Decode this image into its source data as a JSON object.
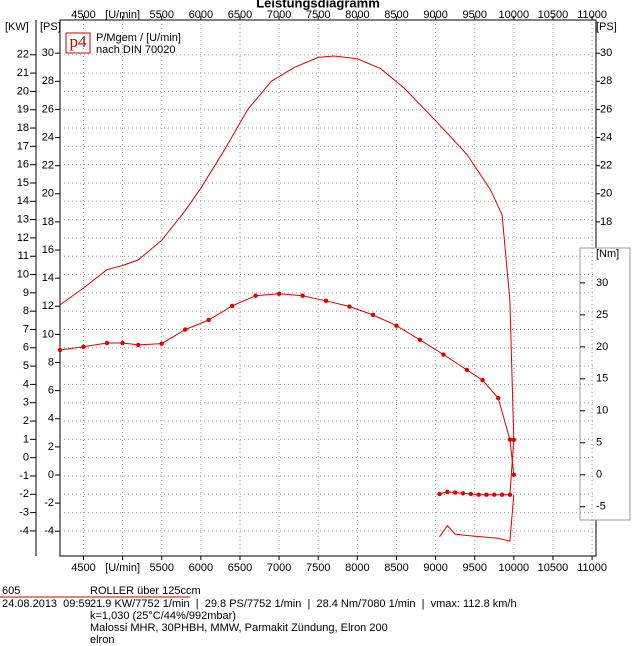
{
  "chart_data": {
    "type": "line",
    "title": "Leistungsdiagramm",
    "logo": "p4",
    "legend_lines": [
      "P/Mgem / [U/min]",
      "nach DIN 70020"
    ],
    "xlim": [
      4200,
      11050
    ],
    "xticks": [
      4500,
      {
        "value": 5000,
        "label": "[U/min]"
      },
      5500,
      6000,
      6500,
      7000,
      7500,
      8000,
      8500,
      9000,
      9500,
      10000,
      10500,
      11000
    ],
    "y_label": "[KW]",
    "ylim": [
      -5.37,
      23.9
    ],
    "yticks": [
      -4,
      -3,
      -2,
      -1,
      0,
      1,
      2,
      3,
      4,
      5,
      6,
      7,
      8,
      9,
      10,
      11,
      12,
      13,
      14,
      15,
      16,
      17,
      18,
      19,
      20,
      21,
      22
    ],
    "y2_label": "[PS]",
    "y2lim": [
      -5.76,
      32.36
    ],
    "y2ticks": [
      -4,
      -2,
      0,
      2,
      4,
      6,
      8,
      10,
      12,
      14,
      16,
      18,
      20,
      22,
      24,
      26,
      28,
      30
    ],
    "y2ticks_right": [
      18,
      20,
      22,
      24,
      26,
      28,
      30
    ],
    "y3_label": "[Nm]",
    "y3lim": [
      -12.7,
      71.1
    ],
    "y3ticks": [
      -5,
      0,
      5,
      10,
      15,
      20,
      25,
      30
    ],
    "grid": true,
    "color": "#e00000",
    "series": [
      {
        "axis": "y2",
        "markers": false,
        "x": [
          4200,
          4500,
          4800,
          5000,
          5200,
          5500,
          5800,
          6000,
          6300,
          6600,
          6900,
          7200,
          7500,
          7700,
          8000,
          8300,
          8600,
          9000,
          9400,
          9700,
          9850,
          9950,
          10000
        ],
        "values": [
          12.1,
          13.3,
          14.6,
          14.9,
          15.3,
          16.7,
          18.8,
          20.4,
          23.1,
          26.0,
          28.0,
          29.0,
          29.7,
          29.8,
          29.6,
          28.9,
          27.5,
          25.2,
          22.8,
          20.3,
          18.5,
          12.4,
          2.5
        ]
      },
      {
        "axis": "y3",
        "markers": true,
        "x": [
          4200,
          4500,
          4800,
          5000,
          5200,
          5500,
          5800,
          6100,
          6400,
          6700,
          7000,
          7300,
          7600,
          7900,
          8200,
          8500,
          8800,
          9100,
          9400,
          9600,
          9800,
          9950,
          10000
        ],
        "values": [
          19.5,
          20.0,
          20.6,
          20.6,
          20.3,
          20.5,
          22.7,
          24.2,
          26.4,
          28.0,
          28.3,
          28.0,
          27.2,
          26.3,
          25.0,
          23.3,
          21.1,
          18.8,
          16.4,
          14.8,
          12.0,
          5.5,
          0.0
        ]
      },
      {
        "axis": "y2",
        "markers": true,
        "x": [
          9050,
          9150,
          9250,
          9350,
          9450,
          9550,
          9650,
          9750,
          9850,
          9950,
          10000
        ],
        "values": [
          -1.35,
          -1.2,
          -1.25,
          -1.3,
          -1.35,
          -1.4,
          -1.4,
          -1.4,
          -1.4,
          -1.4,
          2.5
        ]
      },
      {
        "axis": "y2",
        "markers": false,
        "x": [
          9050,
          9150,
          9250,
          9400,
          9600,
          9800,
          9950,
          10000
        ],
        "values": [
          -4.4,
          -3.6,
          -4.2,
          -4.3,
          -4.4,
          -4.5,
          -4.7,
          -1.4
        ]
      }
    ],
    "info": {
      "id": "605",
      "vehicle": "ROLLER über 125ccm",
      "datetime": "24.08.2013  09:59",
      "results": "21.9 KW/7752 1/min  |  29.8 PS/7752 1/min  |  28.4 Nm/7080 1/min  |  vmax: 112.8 km/h",
      "conditions": "k=1,030 (25°C/44%/992mbar)",
      "setup": "Malossi MHR, 30PHBH, MMW, Parmakit Zündung, Elron 200",
      "operator": "elron"
    }
  }
}
